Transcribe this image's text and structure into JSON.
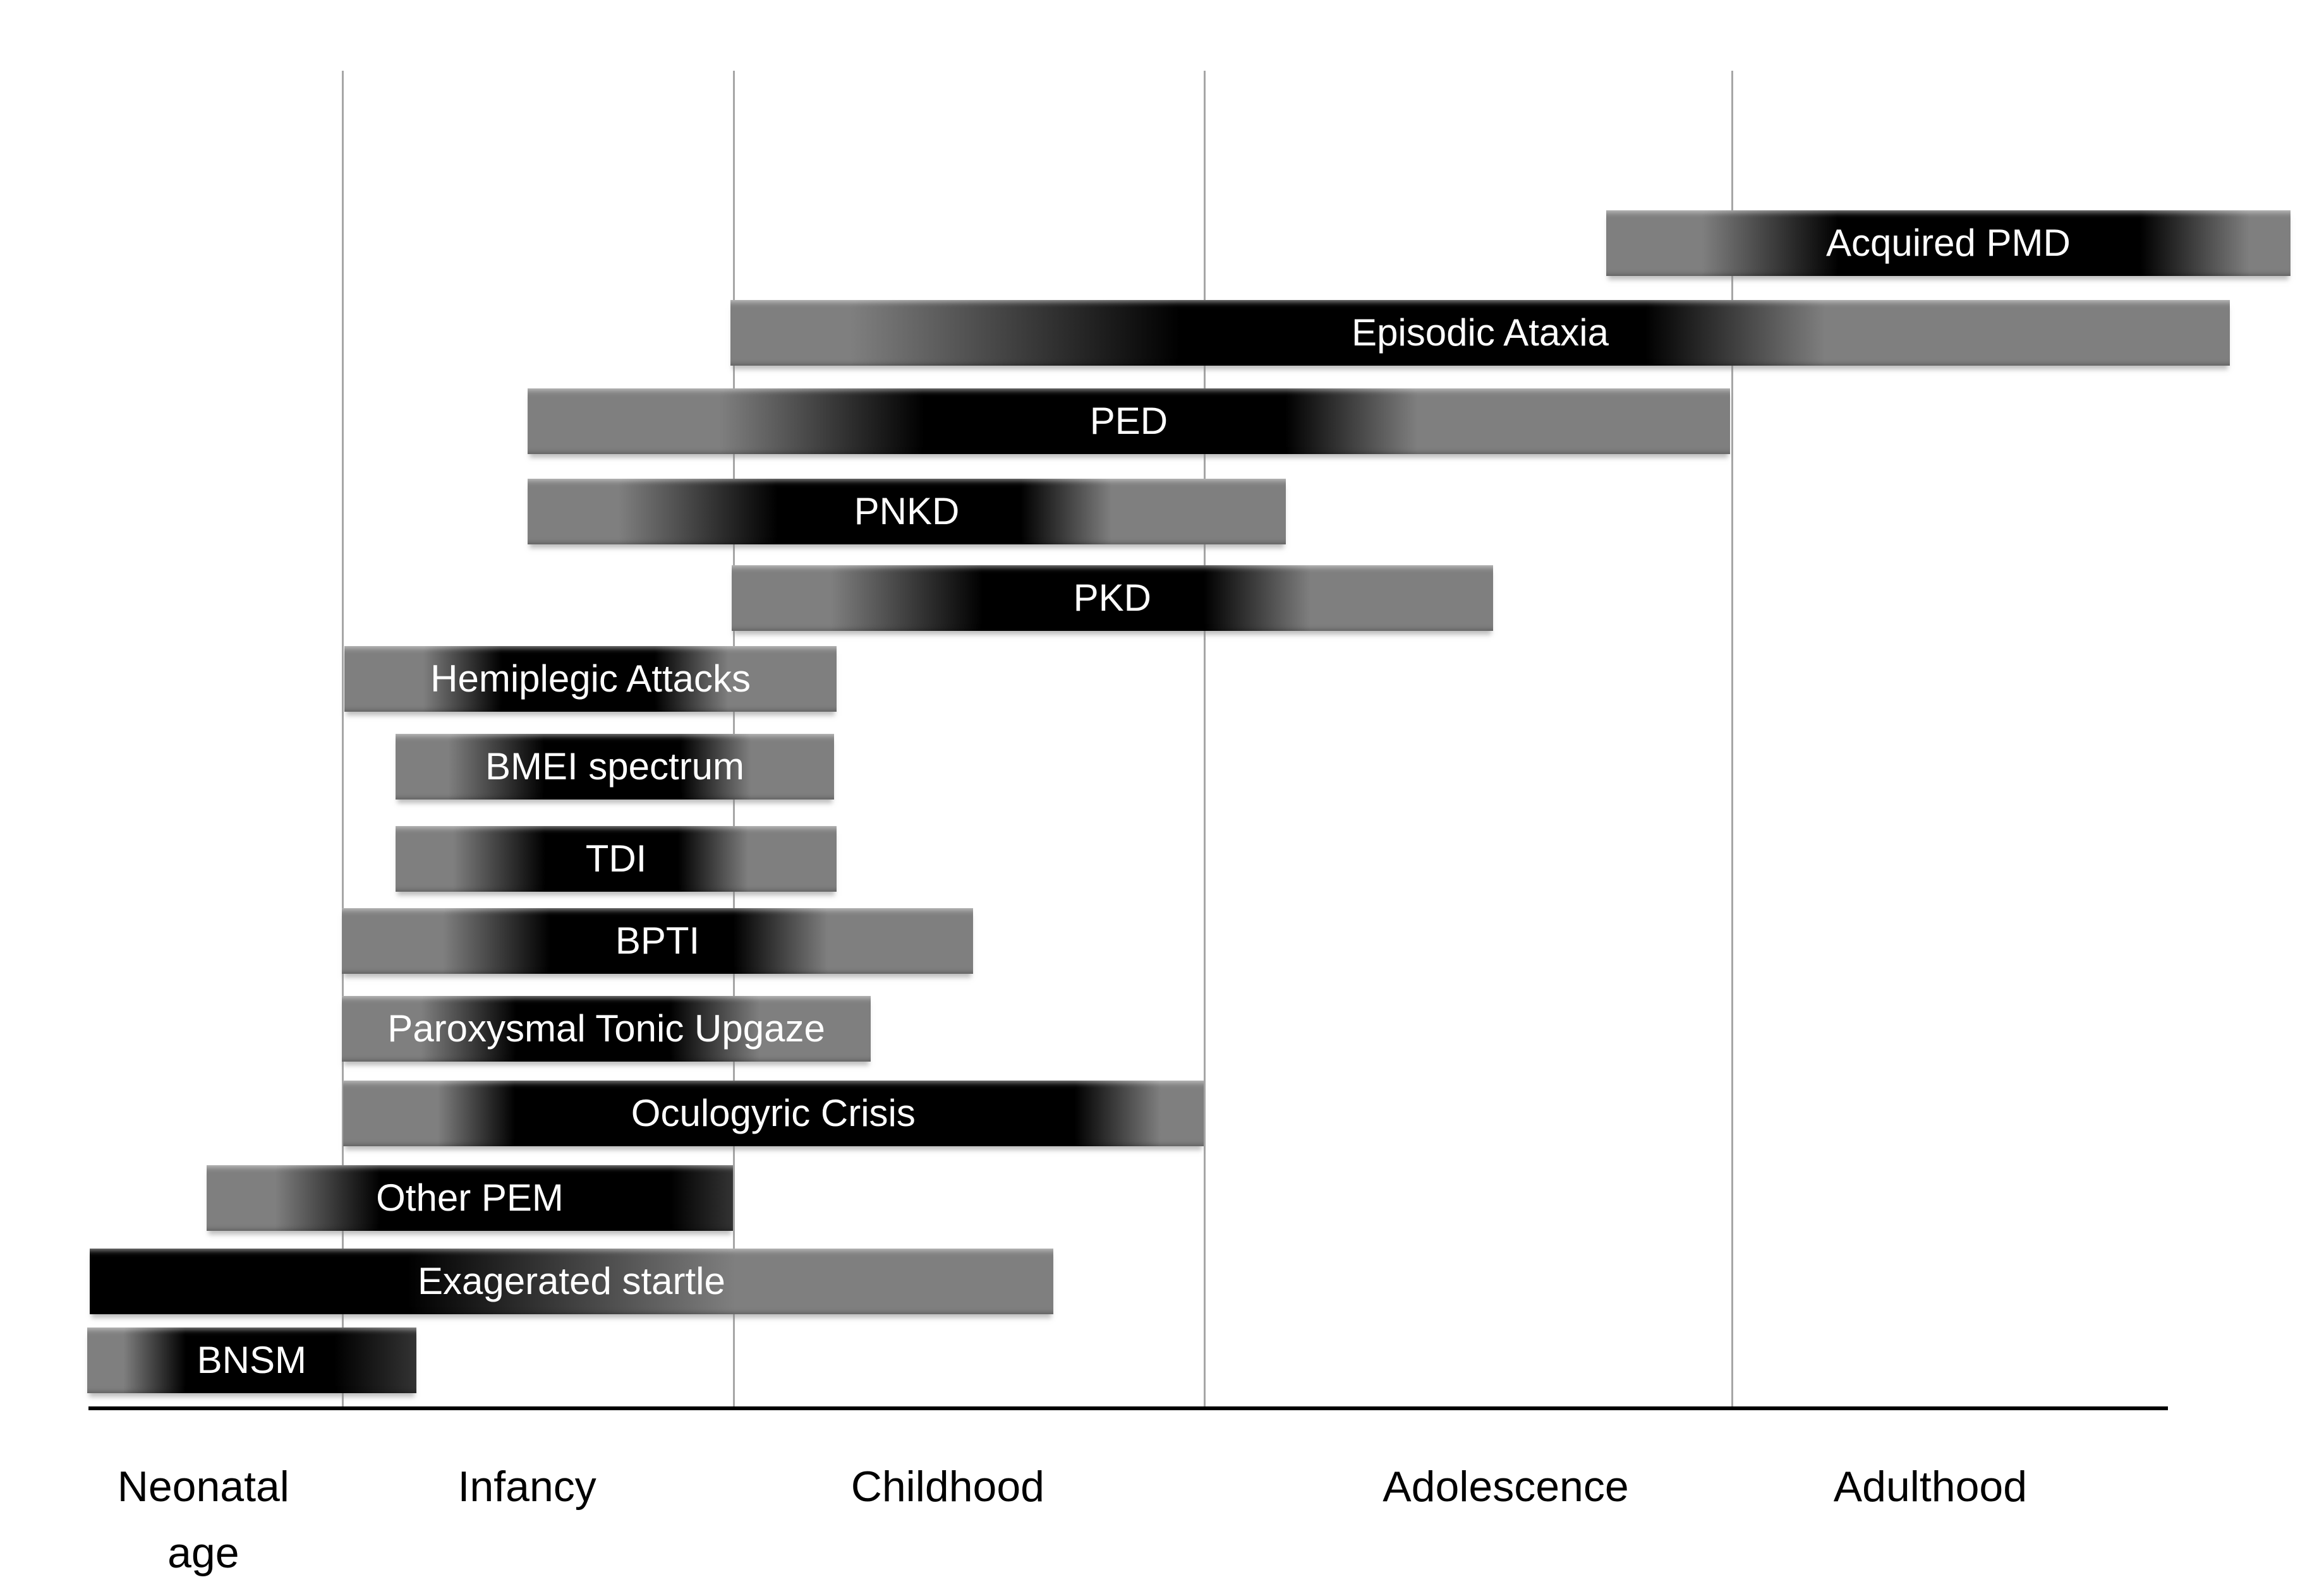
{
  "figure_title": "",
  "colors": {
    "bar_gray": "#7f7f7f",
    "bar_black": "#000000",
    "bar_dark_gray": "#333333",
    "gridline": "#a6a6a6",
    "axis": "#000000",
    "bar_text": "#ffffff",
    "axis_text": "#000000",
    "background": "#ffffff"
  },
  "chart_data": {
    "type": "bar",
    "orientation": "horizontal",
    "description": "Age ranges of paroxysmal movement disorders across life stages; dark band within each bar marks the peak age of occurrence",
    "grid": "vertical stage-boundary lines",
    "legend": "none",
    "x_axis": {
      "stages": [
        "Neonatal age",
        "Infancy",
        "Childhood",
        "Adolescence",
        "Adulthood"
      ],
      "labels": [
        {
          "lines": [
            "Neonatal",
            "age"
          ],
          "x_pct": 8.75
        },
        {
          "lines": [
            "Infancy"
          ],
          "x_pct": 22.68
        },
        {
          "lines": [
            "Childhood"
          ],
          "x_pct": 40.78
        },
        {
          "lines": [
            "Adolescence"
          ],
          "x_pct": 64.79
        },
        {
          "lines": [
            "Adulthood"
          ],
          "x_pct": 83.06
        }
      ],
      "labels_top_pct": 91.2
    },
    "gridlines_x_pct": [
      14.71,
      31.54,
      51.8,
      74.5
    ],
    "axis_line": {
      "left_pct": 3.81,
      "width_pct": 89.48,
      "top_pct": 88.24,
      "thickness_px": 6
    },
    "bars": [
      {
        "id": "acquired-pmd",
        "label": "Acquired PMD",
        "span": "late adolescence through adulthood",
        "left_pct": 69.11,
        "top_pct": 13.19,
        "width_pct": 29.45,
        "gradient": [
          "#7f7f7f 0%",
          "#7f7f7f 14%",
          "#000000 34%",
          "#000000 78%",
          "#7f7f7f 94%",
          "#7f7f7f 100%"
        ]
      },
      {
        "id": "episodic-ataxia",
        "label": "Episodic Ataxia",
        "span": "childhood through adulthood, peak late childhood–adolescence",
        "left_pct": 31.43,
        "top_pct": 18.82,
        "width_pct": 64.52,
        "gradient": [
          "#7f7f7f 0%",
          "#7f7f7f 8%",
          "#000000 30%",
          "#000000 61%",
          "#7f7f7f 73%",
          "#7f7f7f 100%"
        ]
      },
      {
        "id": "ped",
        "label": "PED",
        "span": "mid-infancy to end of adolescence, peak childhood",
        "left_pct": 22.7,
        "top_pct": 24.37,
        "width_pct": 51.74,
        "gradient": [
          "#7f7f7f 0%",
          "#7f7f7f 16%",
          "#000000 33%",
          "#000000 63%",
          "#7f7f7f 74%",
          "#7f7f7f 100%"
        ]
      },
      {
        "id": "pnkd",
        "label": "PNKD",
        "span": "mid-infancy to early adolescence, peak childhood",
        "left_pct": 22.7,
        "top_pct": 30.03,
        "width_pct": 32.63,
        "gradient": [
          "#7f7f7f 0%",
          "#7f7f7f 12%",
          "#000000 33%",
          "#000000 65%",
          "#7f7f7f 77%",
          "#7f7f7f 100%"
        ]
      },
      {
        "id": "pkd",
        "label": "PKD",
        "span": "childhood to mid-adolescence, peak late childhood",
        "left_pct": 31.48,
        "top_pct": 35.46,
        "width_pct": 32.76,
        "gradient": [
          "#7f7f7f 0%",
          "#7f7f7f 13%",
          "#000000 33%",
          "#000000 62%",
          "#7f7f7f 76%",
          "#7f7f7f 100%"
        ]
      },
      {
        "id": "hemiplegic-attacks",
        "label": "Hemiplegic Attacks",
        "span": "infancy to early childhood",
        "left_pct": 14.82,
        "top_pct": 40.53,
        "width_pct": 21.18,
        "gradient": [
          "#7f7f7f 0%",
          "#7f7f7f 16%",
          "#000000 32%",
          "#000000 63%",
          "#7f7f7f 78%",
          "#7f7f7f 100%"
        ]
      },
      {
        "id": "bmei-spectrum",
        "label": "BMEI spectrum",
        "span": "infancy to early childhood",
        "left_pct": 17.02,
        "top_pct": 46.04,
        "width_pct": 18.87,
        "gradient": [
          "#7f7f7f 0%",
          "#7f7f7f 12%",
          "#000000 34%",
          "#000000 65%",
          "#7f7f7f 81%",
          "#7f7f7f 100%"
        ]
      },
      {
        "id": "tdi",
        "label": "TDI",
        "span": "infancy to early childhood",
        "left_pct": 17.02,
        "top_pct": 51.82,
        "width_pct": 18.98,
        "gradient": [
          "#7f7f7f 0%",
          "#7f7f7f 13%",
          "#000000 34%",
          "#000000 64%",
          "#7f7f7f 80%",
          "#7f7f7f 100%"
        ]
      },
      {
        "id": "bpti",
        "label": "BPTI",
        "span": "infancy to mid-childhood",
        "left_pct": 14.71,
        "top_pct": 56.97,
        "width_pct": 27.16,
        "gradient": [
          "#7f7f7f 0%",
          "#7f7f7f 16%",
          "#000000 33%",
          "#000000 62%",
          "#7f7f7f 77%",
          "#7f7f7f 100%"
        ]
      },
      {
        "id": "paroxysmal-tonic-upgaze",
        "label": "Paroxysmal Tonic Upgaze",
        "span": "infancy to early childhood",
        "left_pct": 14.71,
        "top_pct": 62.48,
        "width_pct": 22.76,
        "gradient": [
          "#7f7f7f 0%",
          "#7f7f7f 15%",
          "#000000 33%",
          "#000000 62%",
          "#7f7f7f 79%",
          "#7f7f7f 100%"
        ]
      },
      {
        "id": "oculogyric-crisis",
        "label": "Oculogyric Crisis",
        "span": "infancy to end of childhood, broad peak",
        "left_pct": 14.76,
        "top_pct": 67.79,
        "width_pct": 37.03,
        "gradient": [
          "#7f7f7f 0%",
          "#7f7f7f 11%",
          "#000000 20%",
          "#000000 85%",
          "#7f7f7f 95%",
          "#7f7f7f 100%"
        ]
      },
      {
        "id": "other-pem",
        "label": "Other PEM",
        "span": "mid-neonatal period to end of infancy",
        "left_pct": 8.89,
        "top_pct": 73.1,
        "width_pct": 22.65,
        "gradient": [
          "#7f7f7f 0%",
          "#7f7f7f 13%",
          "#000000 33%",
          "#000000 88%",
          "#333333 100%"
        ]
      },
      {
        "id": "exagerated-startle",
        "label": "Exagerated startle",
        "span": "neonatal period to mid-childhood, peak neonatal–infancy",
        "left_pct": 3.86,
        "top_pct": 78.33,
        "width_pct": 41.46,
        "gradient": [
          "#000000 0%",
          "#000000 33%",
          "#7f7f7f 67%",
          "#7f7f7f 100%"
        ]
      },
      {
        "id": "bnsm",
        "label": "BNSM",
        "span": "neonatal period to early infancy",
        "left_pct": 3.75,
        "top_pct": 83.28,
        "width_pct": 14.16,
        "gradient": [
          "#7f7f7f 0%",
          "#7f7f7f 11%",
          "#000000 30%",
          "#000000 75%",
          "#333333 100%"
        ]
      }
    ]
  }
}
